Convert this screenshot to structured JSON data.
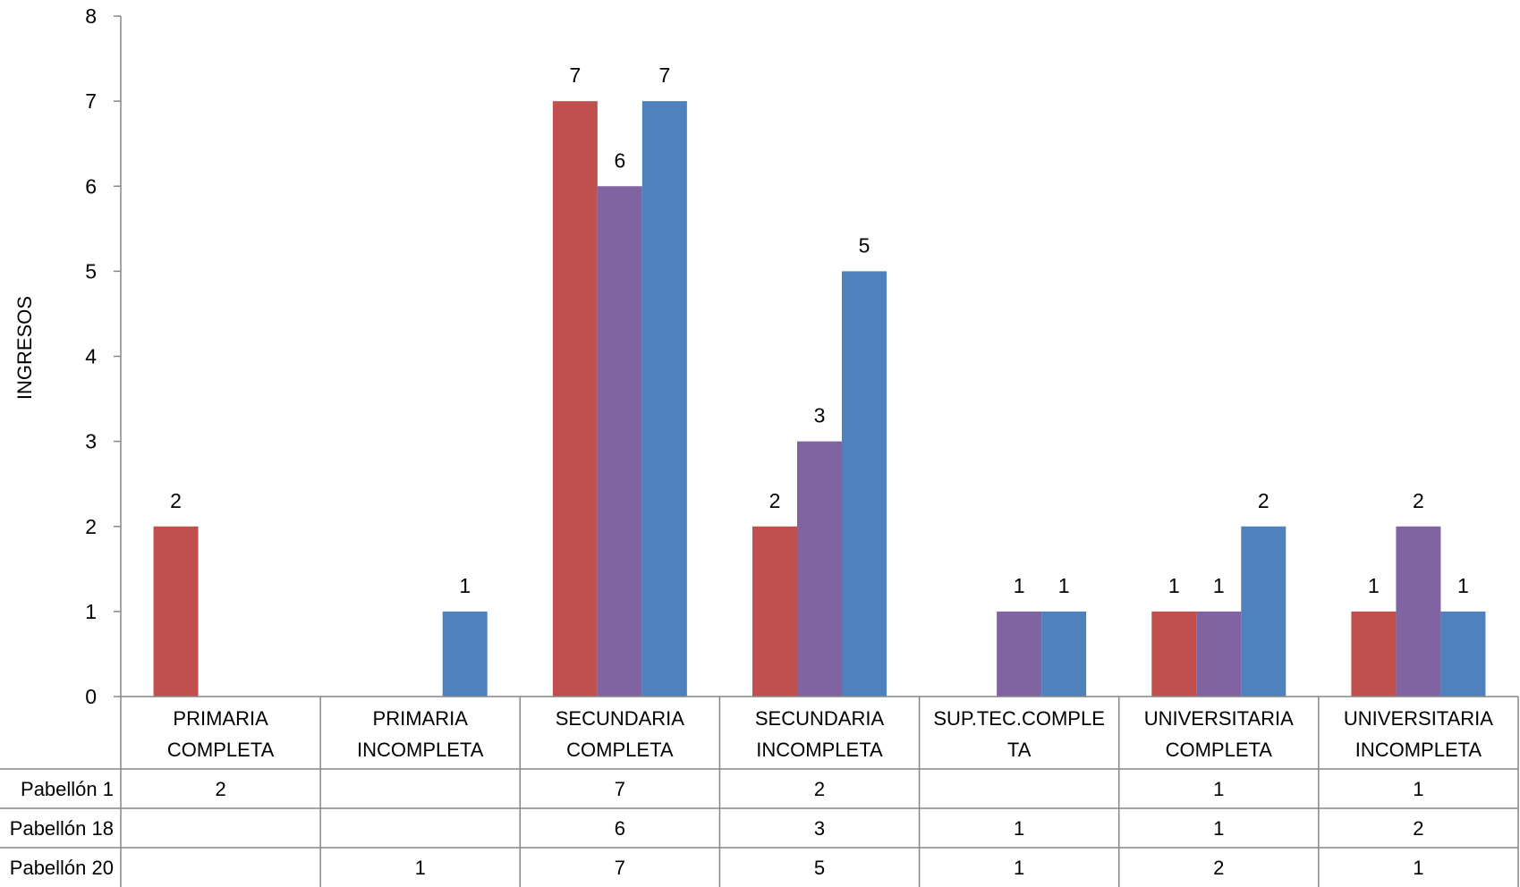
{
  "chart_data": {
    "type": "bar",
    "title": "",
    "ylabel": "INGRESOS",
    "xlabel": "",
    "ylim": [
      0,
      8
    ],
    "yticks": [
      0,
      1,
      2,
      3,
      4,
      5,
      6,
      7,
      8
    ],
    "grid": false,
    "legend": "data-table",
    "categories": [
      [
        "PRIMARIA",
        "COMPLETA"
      ],
      [
        "PRIMARIA",
        "INCOMPLETA"
      ],
      [
        "SECUNDARIA",
        "COMPLETA"
      ],
      [
        "SECUNDARIA",
        "INCOMPLETA"
      ],
      [
        "SUP.TEC.COMPLE",
        "TA"
      ],
      [
        "UNIVERSITARIA",
        "COMPLETA"
      ],
      [
        "UNIVERSITARIA",
        "INCOMPLETA"
      ]
    ],
    "series": [
      {
        "name": "Pabellón 1",
        "color": "#C0504D",
        "values": [
          2,
          null,
          7,
          2,
          null,
          1,
          1
        ]
      },
      {
        "name": "Pabellón 18",
        "color": "#8064A2",
        "values": [
          null,
          null,
          6,
          3,
          1,
          1,
          2
        ]
      },
      {
        "name": "Pabellón 20",
        "color": "#4F81BD",
        "values": [
          null,
          1,
          7,
          5,
          1,
          2,
          1
        ]
      }
    ]
  }
}
